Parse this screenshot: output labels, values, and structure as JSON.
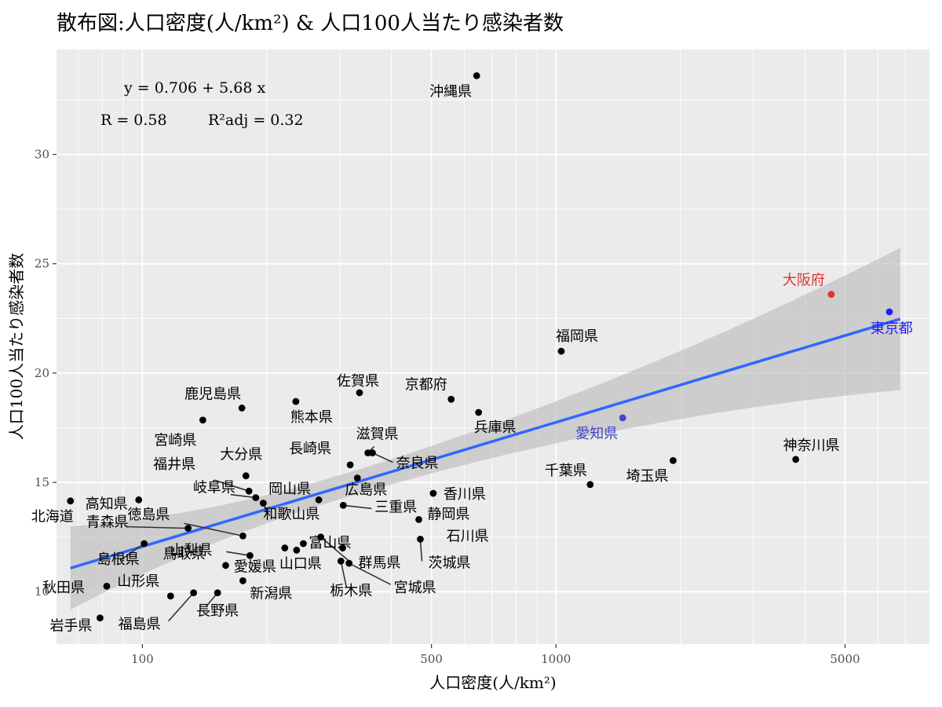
{
  "chart_data": {
    "type": "scatter",
    "title": "散布図:人口密度(人/km²) & 人口100人当たり感染者数",
    "xlabel": "人口密度(人/km²)",
    "ylabel": "人口100人当たり感染者数",
    "x_scale": "log10",
    "xlim": [
      62,
      8000
    ],
    "ylim": [
      7.6,
      34.8
    ],
    "x_ticks": [
      100,
      500,
      1000,
      5000
    ],
    "x_tick_labels": [
      "100",
      "500",
      "1000",
      "5000"
    ],
    "y_ticks": [
      10,
      15,
      20,
      25,
      30
    ],
    "y_tick_labels": [
      "10",
      "15",
      "20",
      "25",
      "30"
    ],
    "grid": true,
    "regression": {
      "equation_label": "y = 0.706 + 5.68 x",
      "r_label": "R = 0.58",
      "r2_label": "R²adj = 0.32",
      "intercept": 0.706,
      "slope": 5.68,
      "x_range": [
        67,
        6800
      ],
      "ci_lower": [
        9.2,
        19.1
      ],
      "ci_upper": [
        13.0,
        25.6
      ],
      "color": "#3366ff"
    },
    "colors": {
      "default": "#000000",
      "tokyo": "#2020ee",
      "aichi": "#4444cc",
      "osaka": "#dd3333"
    },
    "points": [
      {
        "name": "北海道",
        "x": 67,
        "y": 14.15
      },
      {
        "name": "青森県",
        "x": 129,
        "y": 12.9
      },
      {
        "name": "岩手県",
        "x": 79,
        "y": 8.8
      },
      {
        "name": "宮城県",
        "x": 316,
        "y": 11.3
      },
      {
        "name": "秋田県",
        "x": 82,
        "y": 10.25
      },
      {
        "name": "山形県",
        "x": 117,
        "y": 9.8
      },
      {
        "name": "福島県",
        "x": 133,
        "y": 9.95
      },
      {
        "name": "茨城県",
        "x": 470,
        "y": 12.4
      },
      {
        "name": "栃木県",
        "x": 302,
        "y": 11.4
      },
      {
        "name": "群馬県",
        "x": 305,
        "y": 12.0
      },
      {
        "name": "埼玉県",
        "x": 1920,
        "y": 16.0
      },
      {
        "name": "千葉県",
        "x": 1210,
        "y": 14.9
      },
      {
        "name": "東京都",
        "x": 6400,
        "y": 22.8
      },
      {
        "name": "神奈川県",
        "x": 3800,
        "y": 16.05
      },
      {
        "name": "新潟県",
        "x": 175,
        "y": 10.5
      },
      {
        "name": "富山県",
        "x": 245,
        "y": 12.2
      },
      {
        "name": "石川県",
        "x": 270,
        "y": 12.5
      },
      {
        "name": "福井県",
        "x": 181,
        "y": 14.6
      },
      {
        "name": "山梨県",
        "x": 182,
        "y": 11.65
      },
      {
        "name": "長野県",
        "x": 152,
        "y": 9.95
      },
      {
        "name": "岐阜県",
        "x": 188,
        "y": 14.3
      },
      {
        "name": "静岡県",
        "x": 466,
        "y": 13.3
      },
      {
        "name": "愛知県",
        "x": 1450,
        "y": 17.95
      },
      {
        "name": "三重県",
        "x": 306,
        "y": 13.95
      },
      {
        "name": "滋賀県",
        "x": 351,
        "y": 16.35
      },
      {
        "name": "京都府",
        "x": 558,
        "y": 18.8
      },
      {
        "name": "大阪府",
        "x": 4630,
        "y": 23.6
      },
      {
        "name": "兵庫県",
        "x": 650,
        "y": 18.2
      },
      {
        "name": "奈良県",
        "x": 360,
        "y": 16.35
      },
      {
        "name": "和歌山県",
        "x": 196,
        "y": 14.05
      },
      {
        "name": "鳥取県",
        "x": 159,
        "y": 11.2
      },
      {
        "name": "島根県",
        "x": 101,
        "y": 12.2
      },
      {
        "name": "岡山県",
        "x": 267,
        "y": 14.2
      },
      {
        "name": "広島県",
        "x": 331,
        "y": 15.2
      },
      {
        "name": "山口県",
        "x": 221,
        "y": 12.0
      },
      {
        "name": "徳島県",
        "x": 175,
        "y": 12.55
      },
      {
        "name": "香川県",
        "x": 505,
        "y": 14.5
      },
      {
        "name": "愛媛県",
        "x": 236,
        "y": 11.9
      },
      {
        "name": "高知県",
        "x": 98,
        "y": 14.2
      },
      {
        "name": "福岡県",
        "x": 1030,
        "y": 21.0
      },
      {
        "name": "佐賀県",
        "x": 335,
        "y": 19.1
      },
      {
        "name": "長崎県",
        "x": 318,
        "y": 15.8
      },
      {
        "name": "熊本県",
        "x": 235,
        "y": 18.7
      },
      {
        "name": "大分県",
        "x": 178,
        "y": 15.3
      },
      {
        "name": "宮崎県",
        "x": 140,
        "y": 17.85
      },
      {
        "name": "鹿児島県",
        "x": 174,
        "y": 18.4
      },
      {
        "name": "沖縄県",
        "x": 643,
        "y": 33.6
      }
    ]
  }
}
